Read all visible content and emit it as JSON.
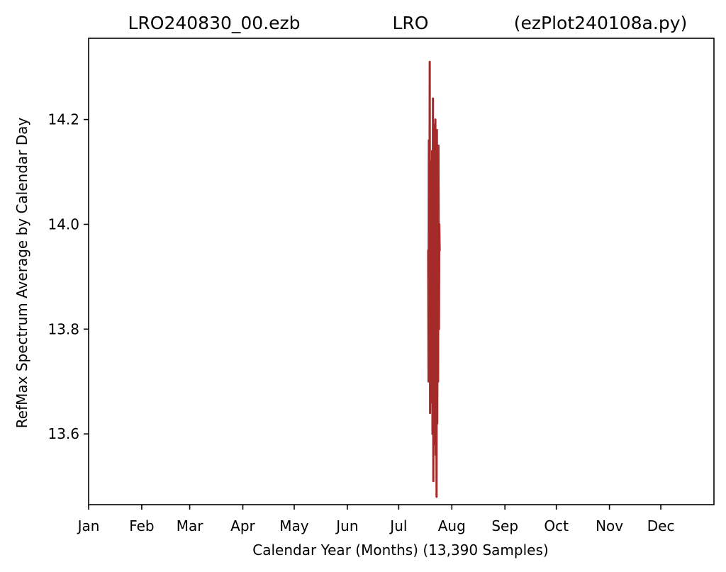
{
  "chart_data": {
    "type": "line",
    "title": {
      "left": "LRO240830_00.ezb",
      "center": "LRO",
      "right": "(ezPlot240108a.py)"
    },
    "xlabel": "Calendar Year (Months) (13,390 Samples)",
    "ylabel": "RefMax Spectrum Average by Calendar Day",
    "x_unit": "day of year",
    "xlim": [
      1,
      366
    ],
    "ylim": [
      13.465,
      14.355
    ],
    "x_ticks": [
      {
        "label": "Jan",
        "day": 1
      },
      {
        "label": "Feb",
        "day": 32
      },
      {
        "label": "Mar",
        "day": 60
      },
      {
        "label": "Apr",
        "day": 91
      },
      {
        "label": "May",
        "day": 121
      },
      {
        "label": "Jun",
        "day": 152
      },
      {
        "label": "Jul",
        "day": 182
      },
      {
        "label": "Aug",
        "day": 213
      },
      {
        "label": "Sep",
        "day": 244
      },
      {
        "label": "Oct",
        "day": 274
      },
      {
        "label": "Nov",
        "day": 305
      },
      {
        "label": "Dec",
        "day": 335
      }
    ],
    "y_ticks": [
      13.6,
      13.8,
      14.0,
      14.2
    ],
    "y_tick_labels": [
      "13.6",
      "13.8",
      "14.0",
      "14.2"
    ],
    "grid": false,
    "series": [
      {
        "color": "#a52a2a",
        "x": [
          199.2,
          199.4,
          199.6,
          199.9,
          200.1,
          200.3,
          200.6,
          200.8,
          201.0,
          201.3,
          201.5,
          201.7,
          202.0,
          202.2,
          202.4,
          202.7,
          202.9,
          203.1,
          203.4,
          203.6,
          203.8,
          204.1,
          204.3,
          204.5,
          204.8,
          205.0,
          205.2,
          205.5,
          205.7,
          205.9
        ],
        "values": [
          13.95,
          13.7,
          14.16,
          13.82,
          14.31,
          13.64,
          14.12,
          13.75,
          14.05,
          13.66,
          14.14,
          13.6,
          14.24,
          13.51,
          14.08,
          13.69,
          14.19,
          13.58,
          14.2,
          13.56,
          14.02,
          13.48,
          14.18,
          13.62,
          14.1,
          13.7,
          14.15,
          13.8,
          14.0,
          13.95
        ]
      }
    ]
  }
}
